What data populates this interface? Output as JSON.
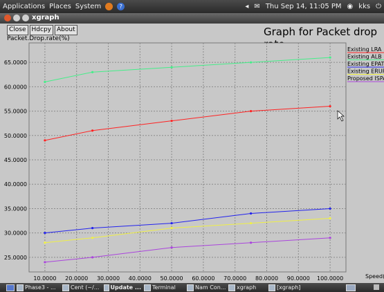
{
  "desktop": {
    "menu": [
      "Applications",
      "Places",
      "System"
    ],
    "clock": "Thu Sep 14, 11:05 PM",
    "user": "kks"
  },
  "window": {
    "title": "xgraph"
  },
  "toolbar": {
    "close": "Close",
    "hdcpy": "Hdcpy",
    "about": "About"
  },
  "taskbar": {
    "items": [
      "Phase3 - ...",
      "Cent (~/...",
      "Update ...",
      "Terminal",
      "Nam Con...",
      "xgraph",
      "[xgraph]"
    ]
  },
  "chart_data": {
    "type": "line",
    "title": "Graph for Packet drop rate",
    "ylabel": "Packet.Drop.rate(%)",
    "xlabel": "Speed(",
    "x": [
      10,
      25,
      50,
      75,
      100
    ],
    "xlim": [
      5,
      105
    ],
    "ylim": [
      22,
      69
    ],
    "xticks": [
      "10.0000",
      "20.0000",
      "30.0000",
      "40.0000",
      "50.0000",
      "60.0000",
      "70.0000",
      "80.0000",
      "90.0000",
      "100.0000"
    ],
    "yticks": [
      "25.0000",
      "30.0000",
      "35.0000",
      "40.0000",
      "45.0000",
      "50.0000",
      "55.0000",
      "60.0000",
      "65.0000"
    ],
    "grid": true,
    "legend_position": "top-right",
    "series": [
      {
        "name": "Existing LRA",
        "color": "#ff2222",
        "values": [
          49,
          51,
          53,
          55,
          56
        ]
      },
      {
        "name": "Existing ALB",
        "color": "#44ee88",
        "values": [
          61,
          63,
          64,
          65,
          66
        ]
      },
      {
        "name": "Existing EPATR",
        "color": "#2222ee",
        "values": [
          30,
          31,
          32,
          34,
          35
        ]
      },
      {
        "name": "Existing ERUP",
        "color": "#f0f044",
        "values": [
          28,
          29,
          31,
          32,
          33
        ]
      },
      {
        "name": "Proposed ISPA",
        "color": "#aa44dd",
        "values": [
          24,
          25,
          27,
          28,
          29
        ]
      }
    ]
  }
}
